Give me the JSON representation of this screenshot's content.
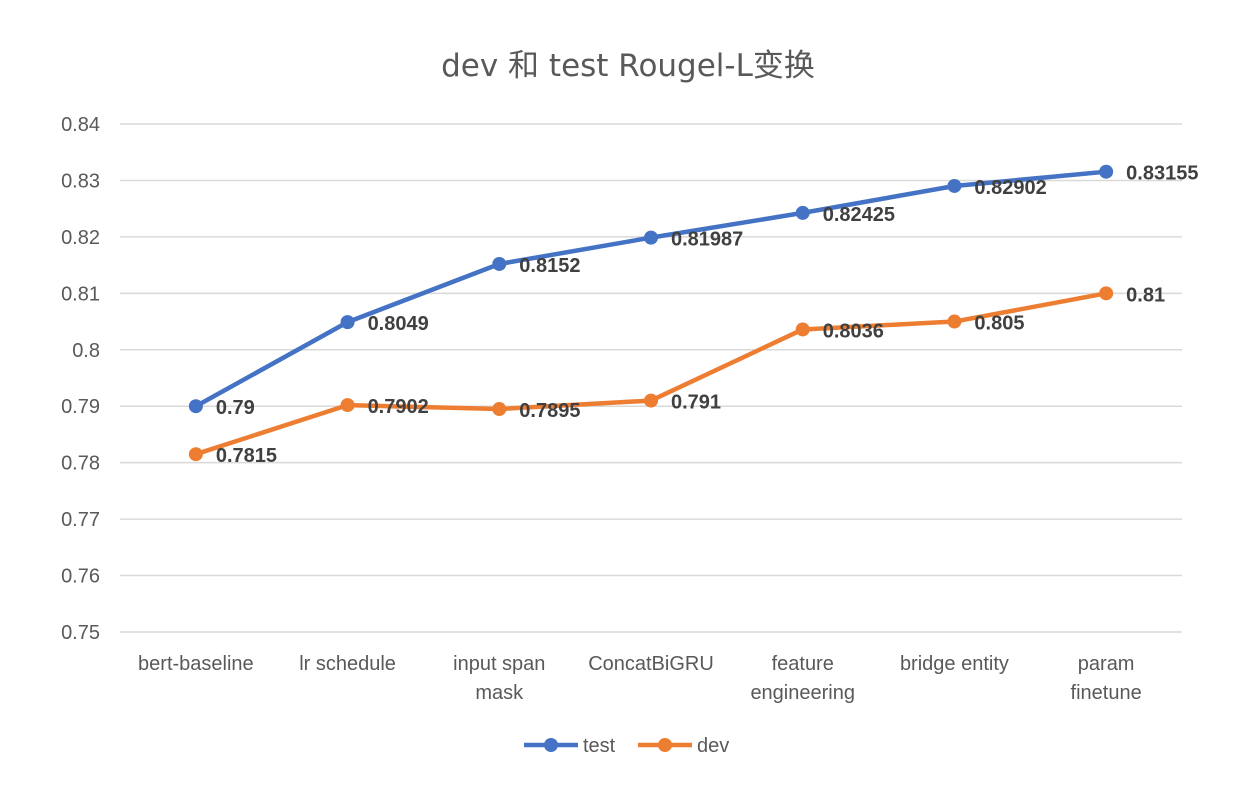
{
  "chart_data": {
    "type": "line",
    "title": "dev 和 test Rougel-L变换",
    "xlabel": "",
    "ylabel": "",
    "categories": [
      [
        "bert-baseline"
      ],
      [
        "lr schedule"
      ],
      [
        "input span",
        "mask"
      ],
      [
        "ConcatBiGRU"
      ],
      [
        "feature",
        "engineering"
      ],
      [
        "bridge entity"
      ],
      [
        "param",
        "finetune"
      ]
    ],
    "ylim": [
      0.75,
      0.84
    ],
    "yticks": [
      "0.75",
      "0.76",
      "0.77",
      "0.78",
      "0.79",
      "0.8",
      "0.81",
      "0.82",
      "0.83",
      "0.84"
    ],
    "grid": true,
    "legend_position": "bottom",
    "series": [
      {
        "name": "test",
        "color": "#4472c4",
        "values": [
          0.79,
          0.8049,
          0.8152,
          0.81987,
          0.82425,
          0.82902,
          0.83155
        ],
        "labels": [
          "0.79",
          "0.8049",
          "0.8152",
          "0.81987",
          "0.82425",
          "0.82902",
          "0.83155"
        ]
      },
      {
        "name": "dev",
        "color": "#ed7d31",
        "values": [
          0.7815,
          0.7902,
          0.7895,
          0.791,
          0.8036,
          0.805,
          0.81
        ],
        "labels": [
          "0.7815",
          "0.7902",
          "0.7895",
          "0.791",
          "0.8036",
          "0.805",
          "0.81"
        ]
      }
    ]
  }
}
